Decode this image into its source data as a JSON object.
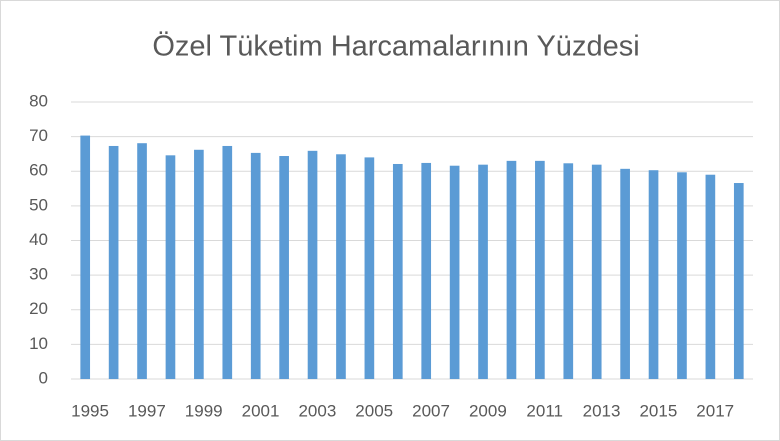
{
  "chart_data": {
    "type": "bar",
    "title": "Özel Tüketim Harcamalarının Yüzdesi",
    "categories": [
      "1995",
      null,
      "1997",
      null,
      "1999",
      null,
      "2001",
      null,
      "2003",
      null,
      "2005",
      null,
      "2007",
      null,
      "2009",
      null,
      "2011",
      null,
      "2013",
      null,
      "2015",
      null,
      "2017",
      null
    ],
    "values": [
      70.3,
      67.3,
      68.1,
      64.6,
      66.2,
      67.3,
      65.3,
      64.4,
      65.9,
      64.9,
      64.0,
      62.1,
      62.4,
      61.6,
      61.9,
      63.0,
      63.0,
      62.3,
      61.9,
      60.7,
      60.3,
      59.7,
      59.0,
      56.6
    ],
    "color": "#5b9bd5",
    "ylim": [
      0,
      80
    ],
    "yticks": [
      0,
      10,
      20,
      30,
      40,
      50,
      60,
      70,
      80
    ],
    "grid": true
  }
}
